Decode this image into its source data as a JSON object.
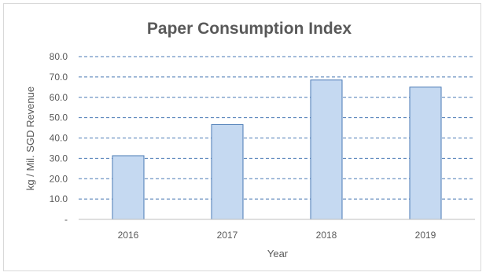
{
  "chart_data": {
    "type": "bar",
    "title": "Paper Consumption Index",
    "xlabel": "Year",
    "ylabel": "kg / Mil. SGD Revenue",
    "categories": [
      "2016",
      "2017",
      "2018",
      "2019"
    ],
    "values": [
      31.3,
      46.6,
      68.5,
      65.0
    ],
    "ylim": [
      0,
      80
    ],
    "yticks": [
      0,
      10,
      20,
      30,
      40,
      50,
      60,
      70,
      80
    ],
    "ytick_labels": [
      "-",
      "10.0",
      "20.0",
      "30.0",
      "40.0",
      "50.0",
      "60.0",
      "70.0",
      "80.0"
    ],
    "grid": true,
    "legend": "none",
    "colors": {
      "bar_fill": "#c5d9f1",
      "bar_stroke": "#4a7ab5",
      "grid": "#4a7ab5",
      "text": "#595959"
    }
  }
}
